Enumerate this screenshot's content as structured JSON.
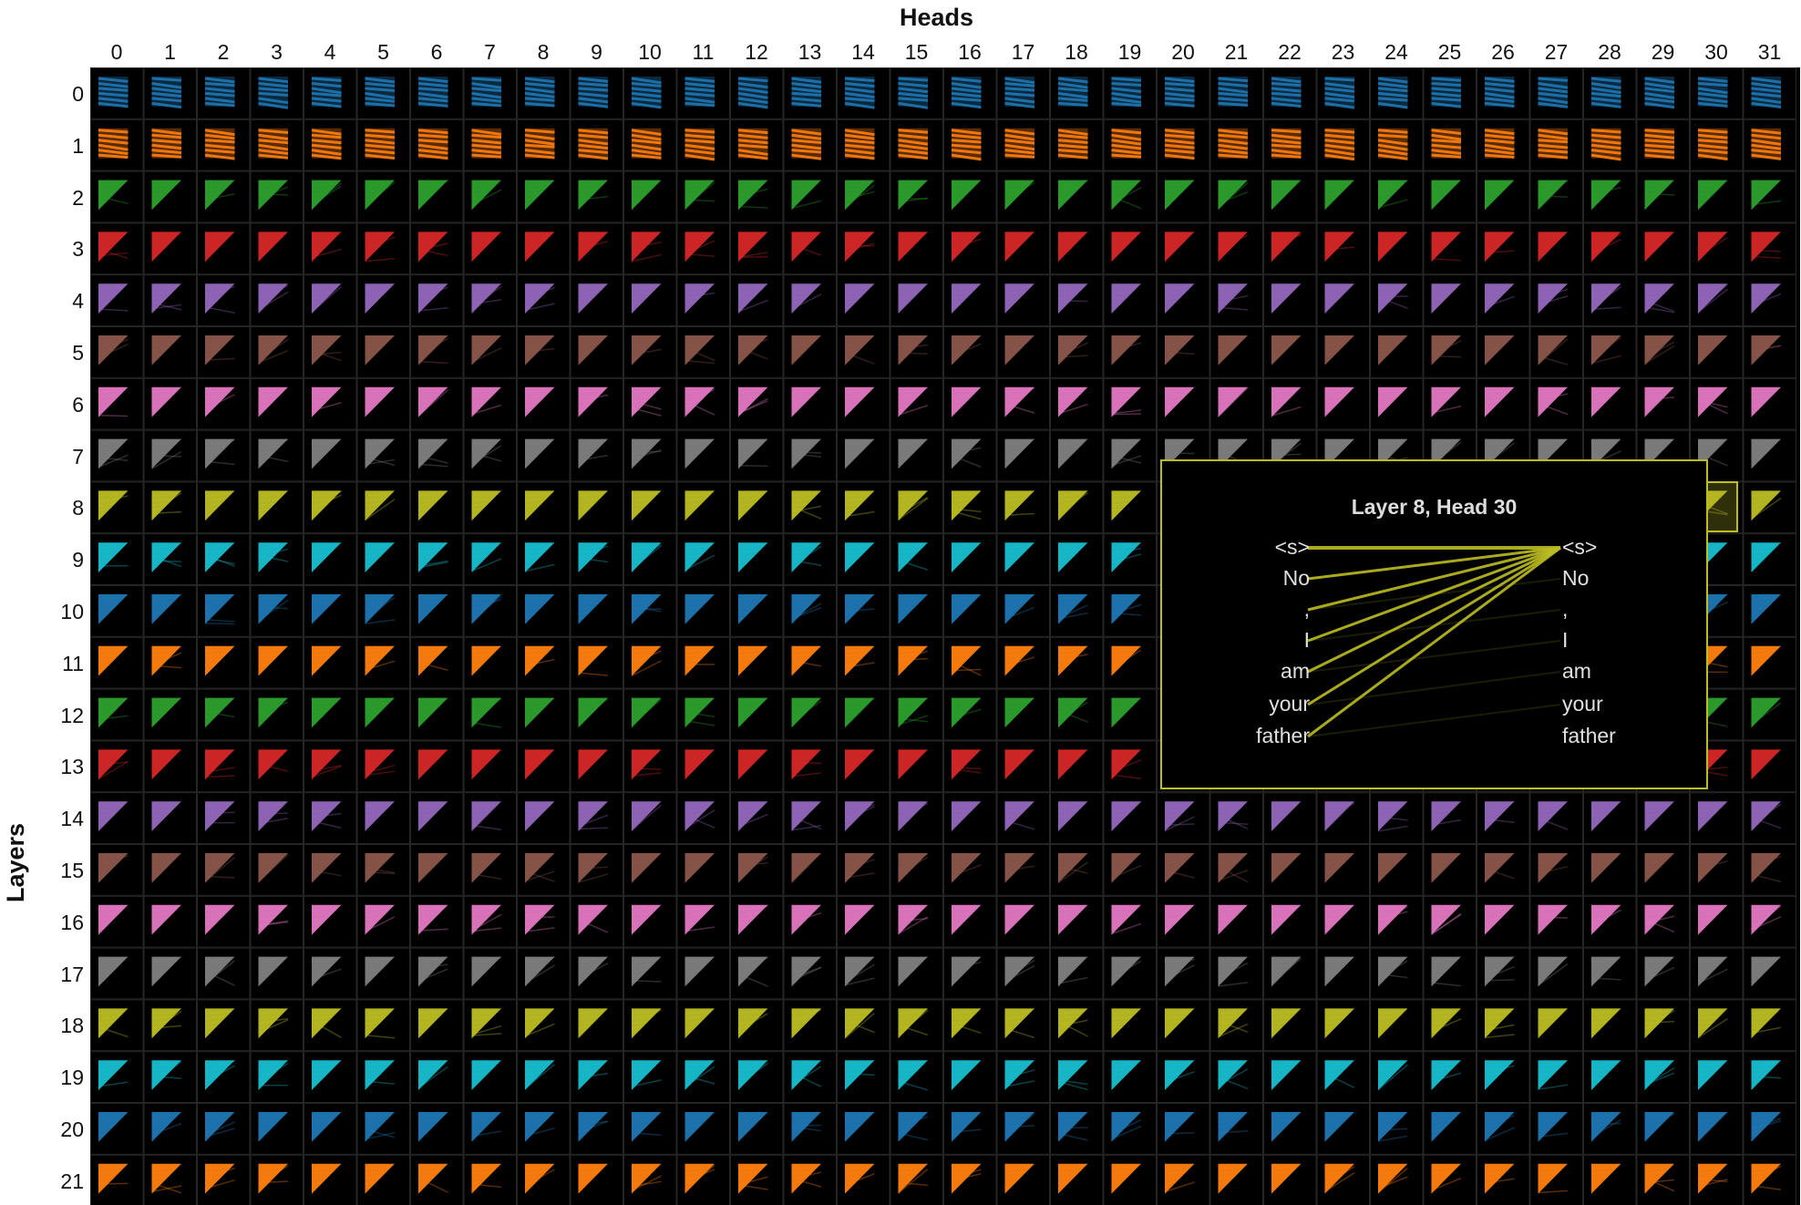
{
  "title_x": "Heads",
  "title_y": "Layers",
  "heads": [
    "0",
    "1",
    "2",
    "3",
    "4",
    "5",
    "6",
    "7",
    "8",
    "9",
    "10",
    "11",
    "12",
    "13",
    "14",
    "15",
    "16",
    "17",
    "18",
    "19",
    "20",
    "21",
    "22",
    "23",
    "24",
    "25",
    "26",
    "27",
    "28",
    "29",
    "30",
    "31"
  ],
  "layers": [
    "0",
    "1",
    "2",
    "3",
    "4",
    "5",
    "6",
    "7",
    "8",
    "9",
    "10",
    "11",
    "12",
    "13",
    "14",
    "15",
    "16",
    "17",
    "18",
    "19",
    "20",
    "21"
  ],
  "layer_colors": [
    "#1f77b4",
    "#ff7f0e",
    "#2ca02c",
    "#d62728",
    "#9467bd",
    "#8c564b",
    "#e377c2",
    "#7f7f7f",
    "#bcbd22",
    "#17becf",
    "#1f77b4",
    "#ff7f0e",
    "#2ca02c",
    "#d62728",
    "#9467bd",
    "#8c564b",
    "#e377c2",
    "#7f7f7f",
    "#bcbd22",
    "#17becf",
    "#1f77b4",
    "#ff7f0e"
  ],
  "popup": {
    "title": "Layer 8, Head 30",
    "selected_layer": 8,
    "selected_head": 30,
    "accent": "#bcbd22",
    "tokens_left": [
      "<s>",
      "No",
      ",",
      "I",
      "am",
      "your",
      "father"
    ],
    "tokens_right": [
      "<s>",
      "No",
      ",",
      "I",
      "am",
      "your",
      "father"
    ],
    "attention_to": 0
  }
}
